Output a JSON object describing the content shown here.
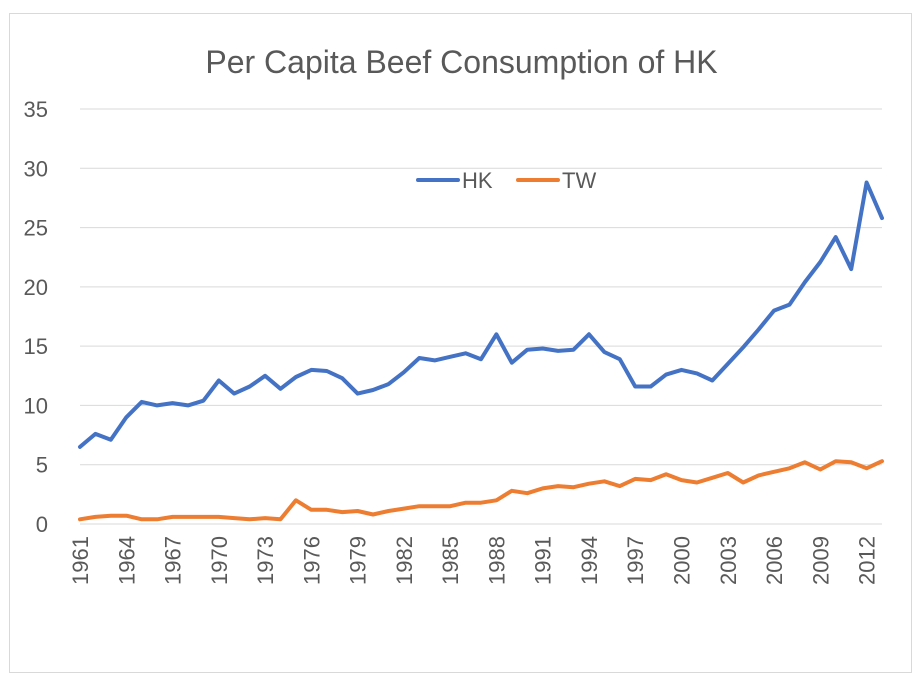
{
  "chart_data": {
    "type": "line",
    "title": "Per Capita Beef Consumption of HK",
    "xlabel": "",
    "ylabel": "",
    "ylim": [
      0,
      35
    ],
    "yticks": [
      0,
      5,
      10,
      15,
      20,
      25,
      30,
      35
    ],
    "x": [
      1961,
      1962,
      1963,
      1964,
      1965,
      1966,
      1967,
      1968,
      1969,
      1970,
      1971,
      1972,
      1973,
      1974,
      1975,
      1976,
      1977,
      1978,
      1979,
      1980,
      1981,
      1982,
      1983,
      1984,
      1985,
      1986,
      1987,
      1988,
      1989,
      1990,
      1991,
      1992,
      1993,
      1994,
      1995,
      1996,
      1997,
      1998,
      1999,
      2000,
      2001,
      2002,
      2003,
      2004,
      2005,
      2006,
      2007,
      2008,
      2009,
      2010,
      2011,
      2012,
      2013
    ],
    "xticks": [
      "1961",
      "1964",
      "1967",
      "1970",
      "1973",
      "1976",
      "1979",
      "1982",
      "1985",
      "1988",
      "1991",
      "1994",
      "1997",
      "2000",
      "2003",
      "2006",
      "2009",
      "2012"
    ],
    "grid": true,
    "legend_position": "top-center",
    "series": [
      {
        "name": "HK",
        "color": "#4472c4",
        "values": [
          6.5,
          7.6,
          7.1,
          9.0,
          10.3,
          10.0,
          10.2,
          10.0,
          10.4,
          12.1,
          11.0,
          11.6,
          12.5,
          11.4,
          12.4,
          13.0,
          12.9,
          12.3,
          11.0,
          11.3,
          11.8,
          12.8,
          14.0,
          13.8,
          14.1,
          14.4,
          13.9,
          16.0,
          13.6,
          14.7,
          14.8,
          14.6,
          14.7,
          16.0,
          14.5,
          13.9,
          11.6,
          11.6,
          12.6,
          13.0,
          12.7,
          12.1,
          13.5,
          14.9,
          16.4,
          18.0,
          18.5,
          20.4,
          22.1,
          24.2,
          21.5,
          28.8,
          25.8
        ]
      },
      {
        "name": "TW",
        "color": "#ed7d31",
        "values": [
          0.4,
          0.6,
          0.7,
          0.7,
          0.4,
          0.4,
          0.6,
          0.6,
          0.6,
          0.6,
          0.5,
          0.4,
          0.5,
          0.4,
          2.0,
          1.2,
          1.2,
          1.0,
          1.1,
          0.8,
          1.1,
          1.3,
          1.5,
          1.5,
          1.5,
          1.8,
          1.8,
          2.0,
          2.8,
          2.6,
          3.0,
          3.2,
          3.1,
          3.4,
          3.6,
          3.2,
          3.8,
          3.7,
          4.2,
          3.7,
          3.5,
          3.9,
          4.3,
          3.5,
          4.1,
          4.4,
          4.7,
          5.2,
          4.6,
          5.3,
          5.2,
          4.7,
          5.3
        ]
      }
    ]
  }
}
